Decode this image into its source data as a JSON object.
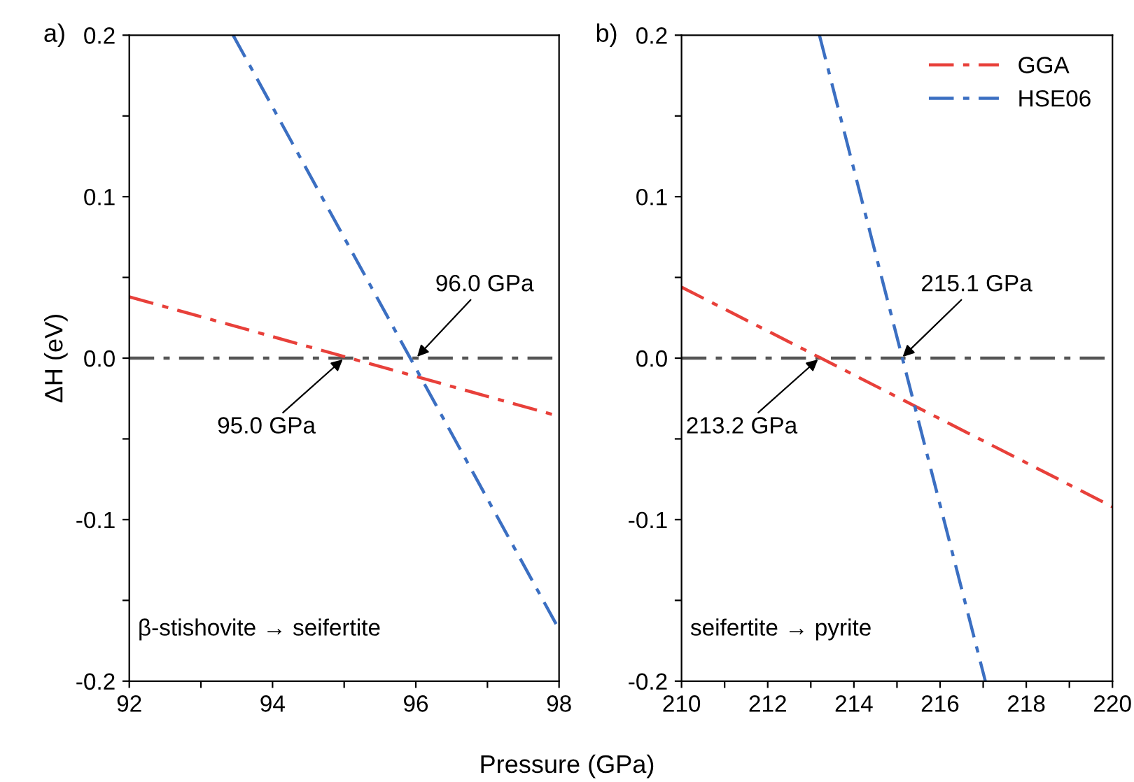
{
  "chart_data": [
    {
      "type": "line",
      "title": "a)",
      "xlabel": "Pressure (GPa)",
      "ylabel": "ΔH (eV)",
      "line_style": "dashdot",
      "marker": "none",
      "grid": false,
      "legend": false,
      "xlim": [
        92,
        98
      ],
      "xticks": [
        92,
        {
          "value": 93,
          "label": null
        },
        94,
        {
          "value": 95,
          "label": null
        },
        96,
        {
          "value": 97,
          "label": null
        },
        98
      ],
      "ylim": [
        -0.2,
        0.2
      ],
      "yticks": [
        -0.2,
        {
          "value": -0.15,
          "label": null
        },
        -0.1,
        {
          "value": -0.05,
          "label": null
        },
        {
          "value": 0,
          "label": "0.0"
        },
        {
          "value": 0.05,
          "label": null
        },
        0.1,
        {
          "value": 0.15,
          "label": null
        },
        0.2
      ],
      "series": [
        {
          "color": "#e8403a",
          "x": [
            92,
            98
          ],
          "values": [
            0.038,
            -0.036
          ]
        },
        {
          "color": "#3b6fc2",
          "x": [
            93.45,
            98
          ],
          "values": [
            0.2,
            -0.168
          ]
        }
      ],
      "ref_lines": [
        {
          "axis": "y",
          "value": 0,
          "color": "#555555",
          "line_style": "dashdot"
        }
      ],
      "annotations": [
        {
          "text": "96.0 GPa",
          "x": 96.0,
          "y": 0
        },
        {
          "text": "95.0 GPa",
          "x": 95.0,
          "y": 0
        },
        "β-stishovite → seifertite"
      ]
    },
    {
      "type": "line",
      "title": "b)",
      "line_style": "dashdot",
      "marker": "none",
      "grid": false,
      "legend": "top right",
      "xlim": [
        210,
        220
      ],
      "xticks": [
        210,
        {
          "value": 211,
          "label": null
        },
        212,
        {
          "value": 213,
          "label": null
        },
        214,
        {
          "value": 215,
          "label": null
        },
        216,
        {
          "value": 217,
          "label": null
        },
        218,
        {
          "value": 219,
          "label": null
        },
        220
      ],
      "ylim": [
        -0.2,
        0.2
      ],
      "yticks": [
        -0.2,
        {
          "value": -0.15,
          "label": null
        },
        -0.1,
        {
          "value": -0.05,
          "label": null
        },
        {
          "value": 0,
          "label": "0.0"
        },
        {
          "value": 0.05,
          "label": null
        },
        0.1,
        {
          "value": 0.15,
          "label": null
        },
        0.2
      ],
      "series": [
        {
          "name": "GGA",
          "color": "#e8403a",
          "x": [
            210,
            220
          ],
          "values": [
            0.044,
            -0.092
          ]
        },
        {
          "name": "HSE06",
          "color": "#3b6fc2",
          "x": [
            213.2,
            217.05
          ],
          "values": [
            0.2,
            -0.2
          ]
        }
      ],
      "ref_lines": [
        {
          "axis": "y",
          "value": 0,
          "color": "#555555",
          "line_style": "dashdot"
        }
      ],
      "annotations": [
        {
          "text": "215.1 GPa",
          "x": 215.1,
          "y": 0
        },
        {
          "text": "213.2 GPa",
          "x": 213.2,
          "y": 0
        },
        "seifertite → pyrite"
      ]
    }
  ]
}
